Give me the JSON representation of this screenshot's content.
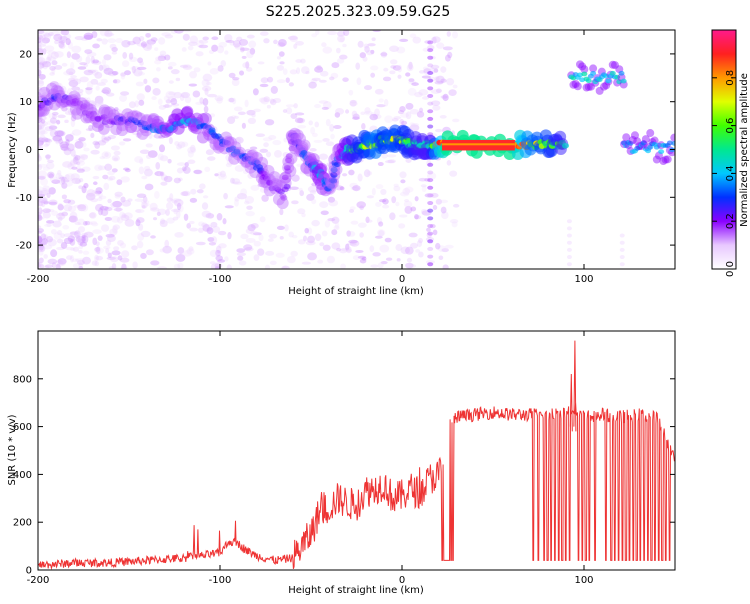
{
  "title": "S225.2025.323.09.59.G25",
  "chart_data": [
    {
      "type": "heatmap",
      "xlabel": "Height of straight line (km)",
      "ylabel": "Frequency (Hz)",
      "xlim": [
        -200,
        150
      ],
      "ylim": [
        -25,
        25
      ],
      "xticks": [
        -200,
        -100,
        0,
        100
      ],
      "yticks": [
        -20,
        -10,
        0,
        10,
        20
      ],
      "colorbar": {
        "label": "Normalized spectral amplitude",
        "range": [
          0,
          1
        ],
        "ticks": [
          0.0,
          0.2,
          0.4,
          0.6,
          0.8
        ]
      },
      "ridge": {
        "x": [
          -200,
          -190,
          -180,
          -170,
          -160,
          -150,
          -140,
          -130,
          -120,
          -110,
          -100,
          -90,
          -80,
          -75,
          -65,
          -60,
          -55,
          -50,
          -45,
          -40,
          -35,
          -30,
          -25,
          -20,
          -15,
          -10,
          -5,
          0,
          5,
          10,
          15,
          25,
          40,
          60,
          70,
          80,
          90
        ],
        "freq": [
          9,
          11,
          10,
          7,
          6,
          6,
          5,
          4,
          6,
          5,
          2,
          -1,
          -3,
          -6,
          -10,
          3,
          0,
          -3,
          -5,
          -8,
          -2,
          0,
          0,
          1,
          1,
          2,
          2,
          2,
          1,
          1,
          1,
          1,
          1,
          1,
          1,
          1,
          1
        ],
        "amp": [
          0.2,
          0.25,
          0.2,
          0.2,
          0.2,
          0.25,
          0.3,
          0.35,
          0.4,
          0.35,
          0.3,
          0.3,
          0.3,
          0.2,
          0.2,
          0.2,
          0.3,
          0.3,
          0.4,
          0.3,
          0.3,
          0.45,
          0.55,
          0.6,
          0.7,
          0.6,
          0.65,
          0.6,
          0.55,
          0.5,
          0.5,
          1.0,
          1.0,
          1.0,
          0.7,
          0.6,
          0.5
        ]
      },
      "segments": [
        {
          "x_range": [
            93,
            122
          ],
          "freq": 15,
          "amp": 0.4
        },
        {
          "x_range": [
            122,
            150
          ],
          "freq": 0.5,
          "amp": 0.35
        }
      ]
    },
    {
      "type": "line",
      "xlabel": "Height of straight line (km)",
      "ylabel": "SNR (10 * v/v)",
      "xlim": [
        -200,
        150
      ],
      "ylim": [
        0,
        1000
      ],
      "xticks": [
        -200,
        -100,
        0,
        100
      ],
      "yticks": [
        0,
        200,
        400,
        600,
        800
      ],
      "color": "#ee3333",
      "series": [
        {
          "name": "SNR",
          "x": [
            -200,
            -180,
            -160,
            -140,
            -120,
            -110,
            -100,
            -95,
            -90,
            -85,
            -80,
            -70,
            -60,
            -50,
            -45,
            -40,
            -35,
            -30,
            -25,
            -20,
            -15,
            -10,
            -5,
            0,
            5,
            10,
            15,
            20,
            22,
            25,
            28,
            30,
            40,
            50,
            60,
            70,
            80,
            90,
            95,
            100,
            110,
            120,
            130,
            140,
            150
          ],
          "y": [
            20,
            30,
            30,
            40,
            50,
            60,
            70,
            120,
            110,
            80,
            60,
            40,
            50,
            150,
            250,
            260,
            300,
            280,
            270,
            330,
            340,
            360,
            300,
            310,
            340,
            320,
            380,
            400,
            420,
            600,
            620,
            640,
            650,
            660,
            650,
            650,
            650,
            660,
            680,
            640,
            650,
            640,
            650,
            640,
            460
          ]
        }
      ],
      "spikes_up": [
        {
          "x": 95,
          "y": 960
        },
        {
          "x": 93,
          "y": 820
        }
      ],
      "dips": [
        22,
        23,
        24,
        25,
        26,
        27,
        28,
        72,
        75,
        78,
        80,
        82,
        84,
        86,
        88,
        90,
        92,
        97,
        99,
        101,
        103,
        106,
        112,
        115,
        117,
        119,
        121,
        123,
        125,
        127,
        129,
        131,
        133,
        135,
        137,
        139,
        141,
        143,
        145,
        147
      ],
      "dip_floor": 40
    }
  ]
}
